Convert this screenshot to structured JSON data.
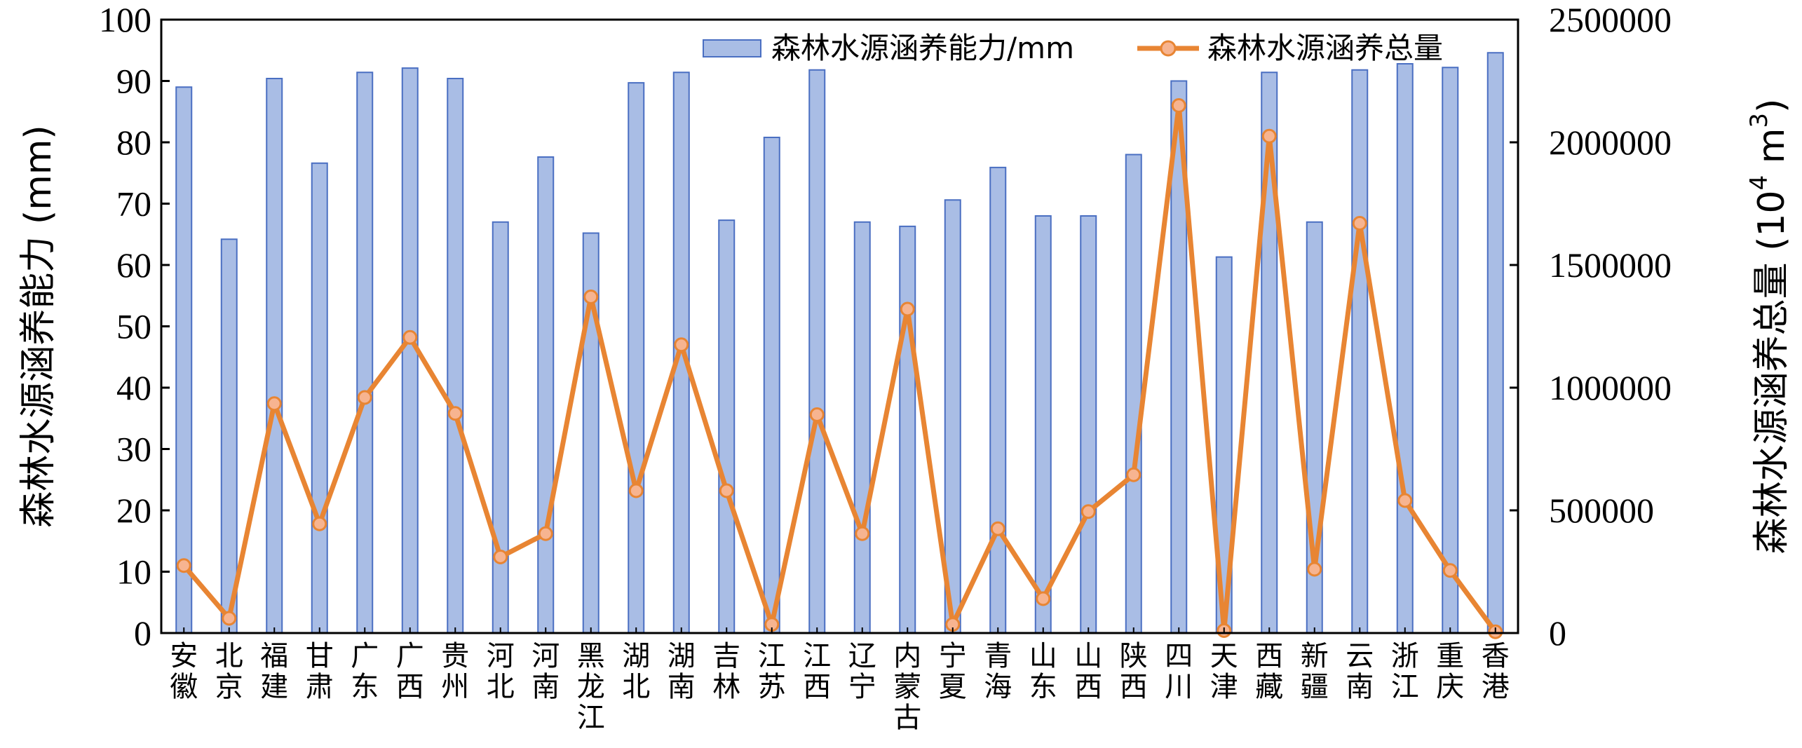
{
  "chart_data": {
    "type": "bar+line",
    "categories": [
      "安徽",
      "北京",
      "福建",
      "甘肃",
      "广东",
      "广西",
      "贵州",
      "河北",
      "河南",
      "黑龙江",
      "湖北",
      "湖南",
      "吉林",
      "江苏",
      "江西",
      "辽宁",
      "内蒙古",
      "宁夏",
      "青海",
      "山东",
      "山西",
      "陕西",
      "四川",
      "天津",
      "西藏",
      "新疆",
      "云南",
      "浙江",
      "重庆",
      "香港"
    ],
    "series": [
      {
        "name": "森林水源涵养能力/mm",
        "kind": "bar",
        "axis": "left",
        "color": "#A9BDE5",
        "edge_color": "#4A6FC2",
        "values": [
          89.0,
          64.2,
          90.4,
          76.6,
          91.4,
          92.1,
          90.4,
          67.0,
          77.6,
          65.2,
          89.7,
          91.4,
          67.3,
          80.8,
          91.8,
          67.0,
          66.3,
          70.6,
          75.9,
          68.0,
          68.0,
          78.0,
          90.0,
          61.3,
          91.4,
          67.0,
          91.8,
          92.8,
          92.2,
          94.6
        ]
      },
      {
        "name": "森林水源涵养总量",
        "kind": "line",
        "axis": "right",
        "color": "#E88533",
        "marker_fill": "#F7B490",
        "values": [
          275000,
          60000,
          935000,
          445000,
          960000,
          1205000,
          895000,
          310000,
          405000,
          1370000,
          580000,
          1175000,
          580000,
          35000,
          890000,
          405000,
          1320000,
          35000,
          425000,
          140000,
          495000,
          645000,
          2150000,
          10000,
          2025000,
          260000,
          1670000,
          540000,
          255000,
          5000
        ]
      }
    ],
    "ylabel_left": "森林水源涵养能力 (mm)",
    "ylabel_right_main": "森林水源涵养总量 (10",
    "ylabel_right_sup": "4",
    "ylabel_right_tail": " m",
    "ylabel_right_sup2": "3",
    "ylabel_right_end": ")",
    "ylim_left": [
      0,
      100
    ],
    "ylim_right": [
      0,
      2500000
    ],
    "yticks_left": [
      "0",
      "10",
      "20",
      "30",
      "40",
      "50",
      "60",
      "70",
      "80",
      "90",
      "100"
    ],
    "yticks_right": [
      "0",
      "500000",
      "1000000",
      "1500000",
      "2000000",
      "2500000"
    ],
    "legend_position": "top-right",
    "grid": false
  }
}
